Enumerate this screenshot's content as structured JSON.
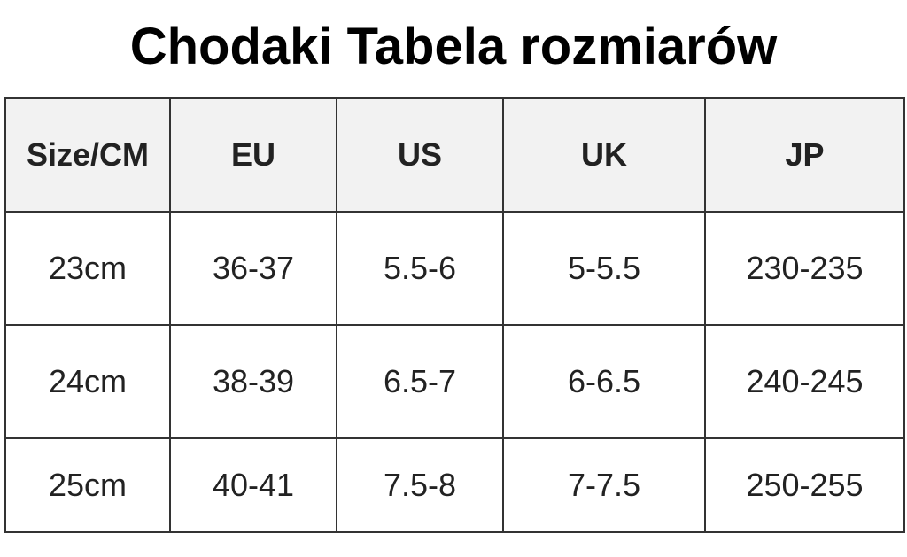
{
  "title": "Chodaki Tabela rozmiarów",
  "table": {
    "header": [
      "Size/CM",
      "EU",
      "US",
      "UK",
      "JP"
    ],
    "rows": [
      [
        "23cm",
        "36-37",
        "5.5-6",
        "5-5.5",
        "230-235"
      ],
      [
        "24cm",
        "38-39",
        "6.5-7",
        "6-6.5",
        "240-245"
      ],
      [
        "25cm",
        "40-41",
        "7.5-8",
        "7-7.5",
        "250-255"
      ]
    ]
  }
}
